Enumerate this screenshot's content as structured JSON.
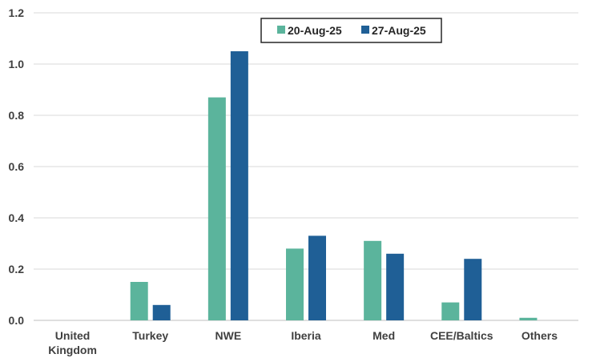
{
  "chart_data": {
    "type": "bar",
    "categories": [
      [
        "United",
        "Kingdom"
      ],
      [
        "Turkey"
      ],
      [
        "NWE"
      ],
      [
        "Iberia"
      ],
      [
        "Med"
      ],
      [
        "CEE/Baltics"
      ],
      [
        "Others"
      ]
    ],
    "series": [
      {
        "name": "20-Aug-25",
        "color": "#5bb49c",
        "values": [
          0,
          0.15,
          0.87,
          0.28,
          0.31,
          0.07,
          0.01
        ]
      },
      {
        "name": "27-Aug-25",
        "color": "#1f5f96",
        "values": [
          0,
          0.06,
          1.05,
          0.33,
          0.26,
          0.24,
          0
        ]
      }
    ],
    "yticks": [
      "0.0",
      "0.2",
      "0.4",
      "0.6",
      "0.8",
      "1.0",
      "1.2"
    ],
    "ylim": [
      0,
      1.2
    ],
    "grid": true,
    "legend_position": "top-right"
  }
}
